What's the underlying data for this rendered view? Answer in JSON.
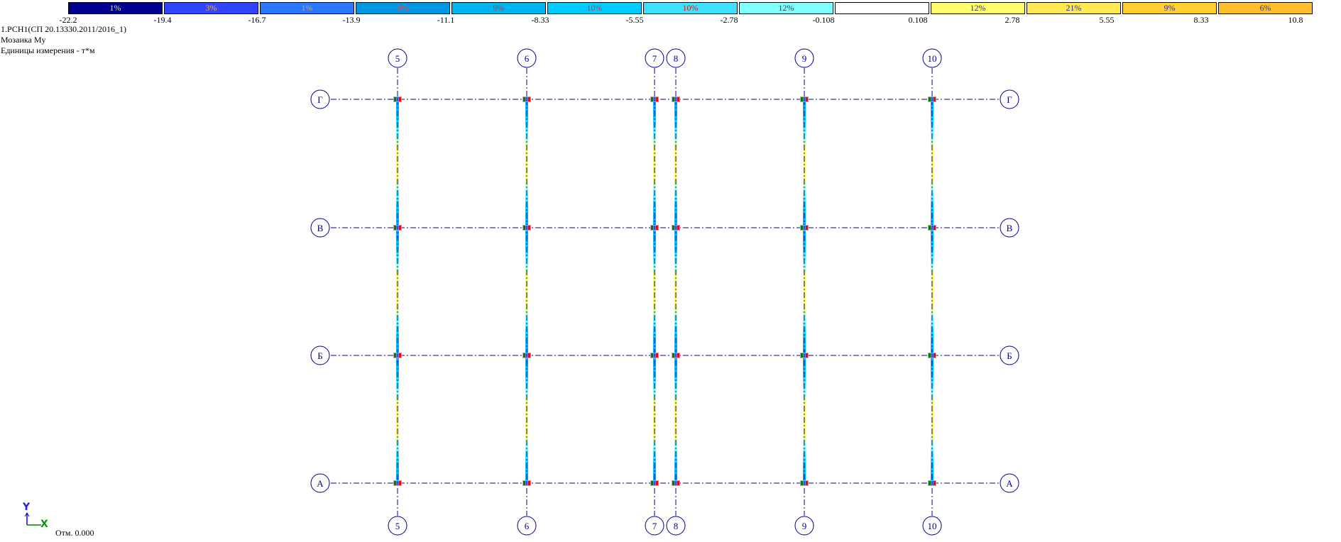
{
  "legend": {
    "cells": [
      {
        "label": "1%",
        "color": "#000090",
        "text": "#e8e850"
      },
      {
        "label": "3%",
        "color": "#3344ff",
        "text": "#e0b040"
      },
      {
        "label": "1%",
        "color": "#2a78ff",
        "text": "#e0a040"
      },
      {
        "label": "5%",
        "color": "#0096e0",
        "text": "#e05050"
      },
      {
        "label": "9%",
        "color": "#00b4f0",
        "text": "#d03030"
      },
      {
        "label": "10%",
        "color": "#00ccff",
        "text": "#d03030"
      },
      {
        "label": "10%",
        "color": "#40e0ff",
        "text": "#c02020"
      },
      {
        "label": "12%",
        "color": "#80ffff",
        "text": "#404040"
      },
      {
        "label": "",
        "color": "#ffffff",
        "text": "#000"
      },
      {
        "label": "12%",
        "color": "#ffff70",
        "text": "#303080"
      },
      {
        "label": "21%",
        "color": "#ffe850",
        "text": "#303090"
      },
      {
        "label": "9%",
        "color": "#ffd030",
        "text": "#3030a0"
      },
      {
        "label": "6%",
        "color": "#ffc030",
        "text": "#3030b0"
      }
    ],
    "ticks": [
      "-22.2",
      "-19.4",
      "-16.7",
      "-13.9",
      "-11.1",
      "-8.33",
      "-5.55",
      "-2.78",
      "-0.108",
      "0.108",
      "2.78",
      "5.55",
      "8.33",
      "10.8"
    ]
  },
  "info": {
    "load": "1.РСН1(СП 20.13330.2011/2016_1)",
    "mosaic": "Мозаика My",
    "units": "Единицы измерения - т*м"
  },
  "axes": [
    "5",
    "6",
    "7",
    "8",
    "9",
    "10"
  ],
  "rows": [
    "Г",
    "В",
    "Б",
    "А"
  ],
  "coord": {
    "y": "Y",
    "x": "X"
  },
  "elevation": "Отм. 0.000",
  "colors": {
    "grid": "#00008b",
    "node_left": "#008000",
    "node_right": "#ff0000",
    "node_center": "#3050ff"
  }
}
